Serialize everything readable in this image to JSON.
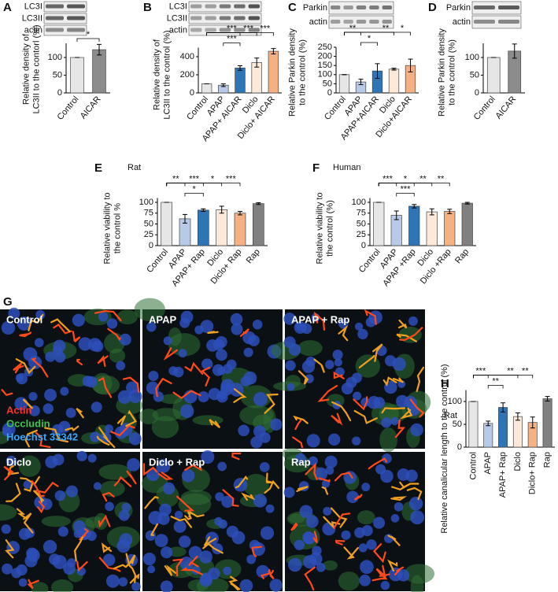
{
  "chart_data": [
    {
      "type": "bar",
      "panel": "A",
      "blot": [
        "LC3I",
        "LC3II",
        "actin"
      ],
      "categories": [
        "Control",
        "AICAR"
      ],
      "values": [
        100,
        122
      ],
      "errors": [
        0,
        15
      ],
      "colors": [
        "#e6e6e6",
        "#8c8c8c"
      ],
      "ylim": [
        0,
        140
      ],
      "yticks": [
        0,
        50,
        100
      ],
      "ylabel": [
        "Relative density of",
        "LC3II to the contorl (%)"
      ],
      "annotations": [
        "*"
      ]
    },
    {
      "type": "bar",
      "panel": "B",
      "blot": [
        "LC3I",
        "LC3II",
        "actin"
      ],
      "categories": [
        "Control",
        "APAP",
        "APAP+ AICAR",
        "Diclo",
        "Diclo+ AICAR"
      ],
      "values": [
        100,
        85,
        275,
        335,
        460
      ],
      "errors": [
        0,
        15,
        25,
        50,
        30
      ],
      "colors": [
        "#e6e6e6",
        "#b7cbe8",
        "#2e75b6",
        "#fde9d9",
        "#f4b183"
      ],
      "ylim": [
        0,
        500
      ],
      "yticks": [
        0,
        200,
        400
      ],
      "ylabel": [
        "Relative density of",
        "LC3II to the control (%)"
      ],
      "annotations": [
        "***",
        "***",
        "***",
        "***"
      ]
    },
    {
      "type": "bar",
      "panel": "C",
      "blot": [
        "Parkin",
        "actin"
      ],
      "categories": [
        "Control",
        "APAP",
        "APAP+AICAR",
        "Diclo",
        "Diclo+AICAR"
      ],
      "values": [
        100,
        60,
        120,
        130,
        150
      ],
      "errors": [
        0,
        15,
        40,
        5,
        35
      ],
      "colors": [
        "#e6e6e6",
        "#b7cbe8",
        "#2e75b6",
        "#fde9d9",
        "#f4b183"
      ],
      "ylim": [
        0,
        250
      ],
      "yticks": [
        0,
        50,
        100,
        150,
        200,
        250
      ],
      "ylabel": [
        "Relative Parkin density",
        "to the control (%)"
      ],
      "annotations": [
        "**",
        "*",
        "**",
        "*"
      ]
    },
    {
      "type": "bar",
      "panel": "D",
      "blot": [
        "Parkin",
        "actin"
      ],
      "categories": [
        "Control",
        "AICAR"
      ],
      "values": [
        100,
        118
      ],
      "errors": [
        0,
        20
      ],
      "colors": [
        "#e6e6e6",
        "#8c8c8c"
      ],
      "ylim": [
        0,
        140
      ],
      "yticks": [
        0,
        50,
        100
      ],
      "ylabel": [
        "Relative Parkin density",
        "to the control (%)"
      ],
      "annotations": []
    },
    {
      "type": "bar",
      "panel": "E",
      "subtitle": "Rat",
      "categories": [
        "Control",
        "APAP",
        "APAP+ Rap",
        "Diclo",
        "Diclo+ Rap",
        "Rap"
      ],
      "values": [
        100,
        62,
        82,
        83,
        75,
        97
      ],
      "errors": [
        0,
        10,
        3,
        8,
        4,
        2
      ],
      "colors": [
        "#e6e6e6",
        "#b7cbe8",
        "#2e75b6",
        "#fde9d9",
        "#f4b183",
        "#808080"
      ],
      "ylim": [
        0,
        110
      ],
      "yticks": [
        0,
        25,
        50,
        75,
        100
      ],
      "ylabel": [
        "Relative viability to",
        "the control %"
      ],
      "annotations": [
        "**",
        "***",
        "*",
        "***",
        "*"
      ]
    },
    {
      "type": "bar",
      "panel": "F",
      "subtitle": "Human",
      "categories": [
        "Control",
        "APAP",
        "APAP +Rap",
        "Diclo",
        "Diclo +Rap",
        "Rap"
      ],
      "values": [
        100,
        70,
        91,
        78,
        79,
        98
      ],
      "errors": [
        0,
        10,
        4,
        7,
        5,
        2
      ],
      "colors": [
        "#e6e6e6",
        "#b7cbe8",
        "#2e75b6",
        "#fde9d9",
        "#f4b183",
        "#808080"
      ],
      "ylim": [
        0,
        110
      ],
      "yticks": [
        0,
        25,
        50,
        75,
        100
      ],
      "ylabel": [
        "Relative viability to",
        "the control (%)"
      ],
      "annotations": [
        "***",
        "*",
        "**",
        "**",
        "***"
      ]
    },
    {
      "type": "bar",
      "panel": "H",
      "subtitle": "Rat",
      "categories": [
        "Control",
        "APAP",
        "APAP+ Rap",
        "Diclo",
        "Diclo+ Rap",
        "Rap"
      ],
      "values": [
        100,
        52,
        87,
        67,
        54,
        106
      ],
      "errors": [
        0,
        5,
        10,
        8,
        12,
        5
      ],
      "colors": [
        "#e6e6e6",
        "#b7cbe8",
        "#2e75b6",
        "#fde9d9",
        "#f4b183",
        "#808080"
      ],
      "ylim": [
        0,
        125
      ],
      "yticks": [
        0,
        50,
        100
      ],
      "ylabel": [
        "Relative canalicular length to the control (%)"
      ],
      "annotations": [
        "***",
        "**",
        "**",
        "**"
      ]
    }
  ],
  "micrograph": {
    "panel": "G",
    "images": [
      "Control",
      "APAP",
      "APAP + Rap",
      "Diclo",
      "Diclo + Rap",
      "Rap"
    ],
    "stains": [
      {
        "name": "Actin",
        "color": "#ff3030"
      },
      {
        "name": "Occludin",
        "color": "#3fc24a"
      },
      {
        "name": "Hoechst 33342",
        "color": "#35a8ff"
      }
    ]
  }
}
